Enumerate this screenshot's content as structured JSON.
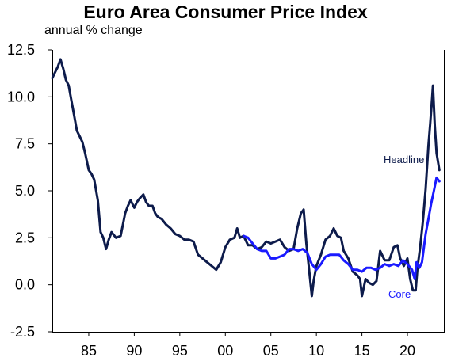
{
  "title": "Euro Area Consumer Price Index",
  "subtitle": "annual % change",
  "chart_data": {
    "type": "line",
    "title": "Euro Area Consumer Price Index",
    "ylabel": "annual % change",
    "xlabel": "",
    "xlim": [
      1981.0,
      2024.0
    ],
    "ylim": [
      -2.5,
      12.5
    ],
    "y_ticks": [
      "12.5",
      "10.0",
      "7.5",
      "5.0",
      "2.5",
      "0.0",
      "-2.5"
    ],
    "x_ticks": [
      "85",
      "90",
      "95",
      "00",
      "05",
      "10",
      "15",
      "20"
    ],
    "x_tick_years": [
      1985,
      1990,
      1995,
      2000,
      2005,
      2010,
      2015,
      2020
    ],
    "colors": {
      "Headline": "#0d1b4b",
      "Core": "#1a1aff"
    },
    "series": [
      {
        "name": "Headline",
        "x": [
          1981.0,
          1981.3,
          1981.6,
          1981.9,
          1982.2,
          1982.5,
          1982.8,
          1983.1,
          1983.4,
          1983.7,
          1984.0,
          1984.3,
          1984.6,
          1985.0,
          1985.3,
          1985.6,
          1986.0,
          1986.3,
          1986.6,
          1986.9,
          1987.2,
          1987.5,
          1988.0,
          1988.5,
          1989.0,
          1989.3,
          1989.6,
          1990.0,
          1990.3,
          1990.6,
          1991.0,
          1991.3,
          1991.6,
          1992.0,
          1992.3,
          1992.6,
          1993.0,
          1993.5,
          1994.0,
          1994.5,
          1995.0,
          1995.5,
          1996.0,
          1996.5,
          1997.0,
          1997.5,
          1998.0,
          1998.5,
          1999.0,
          1999.5,
          2000.0,
          2000.5,
          2001.0,
          2001.3,
          2001.6,
          2002.0,
          2002.5,
          2003.0,
          2003.5,
          2004.0,
          2004.5,
          2005.0,
          2005.5,
          2006.0,
          2006.5,
          2007.0,
          2007.5,
          2007.9,
          2008.3,
          2008.6,
          2008.9,
          2009.2,
          2009.5,
          2009.7,
          2010.0,
          2010.5,
          2011.0,
          2011.5,
          2011.9,
          2012.3,
          2012.7,
          2013.0,
          2013.5,
          2014.0,
          2014.5,
          2014.8,
          2015.0,
          2015.4,
          2015.8,
          2016.2,
          2016.6,
          2017.0,
          2017.5,
          2018.0,
          2018.5,
          2018.9,
          2019.2,
          2019.6,
          2020.0,
          2020.3,
          2020.6,
          2020.9,
          2021.1,
          2021.4,
          2021.7,
          2022.0,
          2022.3,
          2022.5,
          2022.7,
          2022.8,
          2023.0,
          2023.2,
          2023.5
        ],
        "y": [
          11.0,
          11.3,
          11.6,
          12.0,
          11.5,
          10.9,
          10.6,
          9.8,
          9.0,
          8.2,
          7.9,
          7.6,
          7.0,
          6.1,
          5.9,
          5.6,
          4.5,
          2.8,
          2.5,
          1.9,
          2.4,
          2.8,
          2.5,
          2.6,
          3.8,
          4.2,
          4.5,
          4.1,
          4.4,
          4.6,
          4.8,
          4.4,
          4.2,
          4.2,
          3.8,
          3.6,
          3.5,
          3.2,
          3.0,
          2.7,
          2.6,
          2.4,
          2.4,
          2.3,
          1.6,
          1.4,
          1.2,
          1.0,
          0.8,
          1.2,
          2.0,
          2.4,
          2.5,
          3.0,
          2.5,
          2.6,
          2.1,
          2.1,
          1.9,
          2.0,
          2.3,
          2.2,
          2.3,
          2.4,
          2.0,
          1.8,
          1.9,
          3.0,
          3.8,
          4.0,
          2.2,
          0.8,
          -0.6,
          0.2,
          1.0,
          1.6,
          2.4,
          2.6,
          3.0,
          2.6,
          2.5,
          1.8,
          1.4,
          0.7,
          0.5,
          0.3,
          -0.6,
          0.3,
          0.1,
          0.0,
          0.2,
          1.8,
          1.3,
          1.3,
          2.0,
          2.1,
          1.4,
          1.0,
          1.4,
          0.3,
          -0.3,
          -0.3,
          0.9,
          2.0,
          3.4,
          5.1,
          7.4,
          8.6,
          9.9,
          10.6,
          8.5,
          7.0,
          6.1
        ]
      },
      {
        "name": "Core",
        "x": [
          2002.0,
          2002.5,
          2003.0,
          2003.5,
          2004.0,
          2004.5,
          2005.0,
          2005.5,
          2006.0,
          2006.5,
          2007.0,
          2007.5,
          2008.0,
          2008.5,
          2009.0,
          2009.5,
          2010.0,
          2010.5,
          2011.0,
          2011.5,
          2012.0,
          2012.5,
          2013.0,
          2013.5,
          2014.0,
          2014.5,
          2015.0,
          2015.5,
          2016.0,
          2016.5,
          2017.0,
          2017.5,
          2018.0,
          2018.5,
          2019.0,
          2019.5,
          2020.0,
          2020.5,
          2020.8,
          2021.0,
          2021.3,
          2021.6,
          2022.0,
          2022.3,
          2022.6,
          2022.9,
          2023.2,
          2023.5
        ],
        "y": [
          2.6,
          2.5,
          2.2,
          1.9,
          1.8,
          1.8,
          1.4,
          1.4,
          1.5,
          1.6,
          1.9,
          1.9,
          1.8,
          1.9,
          1.7,
          1.1,
          0.8,
          1.1,
          1.5,
          1.6,
          1.6,
          1.6,
          1.3,
          1.1,
          0.8,
          0.8,
          0.7,
          0.9,
          0.9,
          0.8,
          0.9,
          1.1,
          1.0,
          1.1,
          1.0,
          1.3,
          1.1,
          0.8,
          0.3,
          1.2,
          0.9,
          1.2,
          2.7,
          3.5,
          4.3,
          5.0,
          5.7,
          5.5
        ]
      }
    ],
    "annotations": [
      {
        "text": "Headline",
        "series": "Headline"
      },
      {
        "text": "Core",
        "series": "Core"
      }
    ]
  }
}
